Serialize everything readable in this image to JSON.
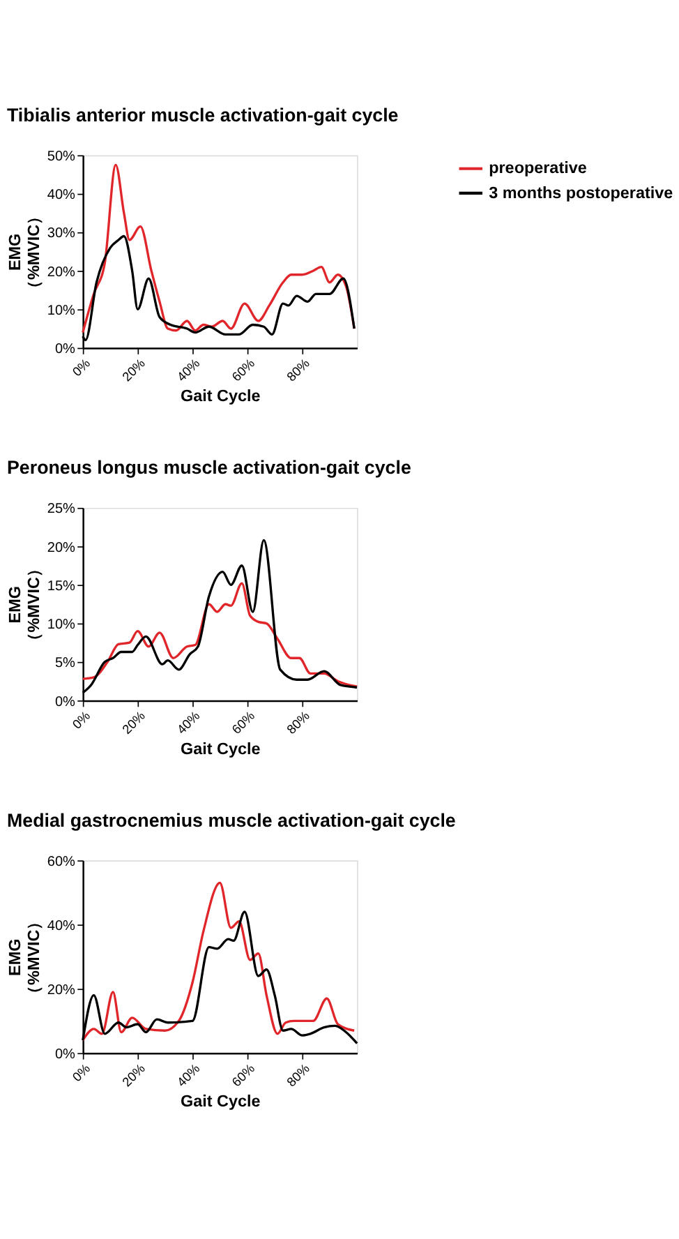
{
  "chart_data": [
    {
      "type": "line",
      "title": "Tibialis anterior muscle activation-gait cycle",
      "xlabel": "Gait Cycle",
      "ylabel": "EMG\n（%MVIC）",
      "xlim": [
        0,
        100
      ],
      "xticks": [
        {
          "value": 0,
          "label": "0%"
        },
        {
          "value": 20,
          "label": "20%"
        },
        {
          "value": 40,
          "label": "40%"
        },
        {
          "value": 60,
          "label": "60%"
        },
        {
          "value": 80,
          "label": "80%"
        }
      ],
      "ylim": [
        0,
        50
      ],
      "yticks": [
        {
          "value": 0,
          "label": "0%"
        },
        {
          "value": 10,
          "label": "10%"
        },
        {
          "value": 20,
          "label": "20%"
        },
        {
          "value": 30,
          "label": "30%"
        },
        {
          "value": 40,
          "label": "40%"
        },
        {
          "value": 50,
          "label": "50%"
        }
      ],
      "grid": false,
      "legend": "right",
      "marker": "none",
      "line_style": "solid",
      "series": [
        {
          "name": "preoperative",
          "color": "#e0262a",
          "x": [
            0,
            4,
            8,
            12,
            15,
            17,
            21,
            25,
            28,
            31,
            34,
            38,
            41,
            44,
            47,
            51,
            54,
            59,
            64,
            68,
            73,
            76,
            80,
            84,
            87,
            90,
            93,
            96,
            99
          ],
          "values": [
            4,
            14,
            22,
            47.5,
            35,
            28,
            31.5,
            20,
            12,
            5,
            4.5,
            7,
            4.5,
            6,
            5.5,
            7,
            5,
            11.5,
            7,
            11,
            17,
            19,
            19,
            20,
            21,
            17,
            19,
            16,
            5
          ]
        },
        {
          "name": "3 months postoperative",
          "color": "#000000",
          "x": [
            0,
            1,
            5,
            10,
            13,
            15,
            18,
            20,
            24,
            28,
            32,
            38,
            41,
            46,
            52,
            57,
            62,
            66,
            69,
            73,
            75,
            78,
            82,
            85,
            90,
            95,
            99
          ],
          "values": [
            3,
            2,
            17,
            26,
            28,
            29,
            20,
            10,
            18,
            8,
            6,
            5,
            4,
            5.5,
            3.5,
            3.5,
            6,
            5.5,
            3.5,
            11.5,
            11,
            13.5,
            12,
            14,
            14,
            18,
            5
          ]
        }
      ]
    },
    {
      "type": "line",
      "title": "Peroneus longus muscle activation-gait cycle",
      "xlabel": "Gait Cycle",
      "ylabel": "EMG\n（%MVIC）",
      "xlim": [
        0,
        100
      ],
      "xticks": [
        {
          "value": 0,
          "label": "0%"
        },
        {
          "value": 20,
          "label": "20%"
        },
        {
          "value": 40,
          "label": "40%"
        },
        {
          "value": 60,
          "label": "60%"
        },
        {
          "value": 80,
          "label": "80%"
        }
      ],
      "ylim": [
        0,
        25
      ],
      "yticks": [
        {
          "value": 0,
          "label": "0%"
        },
        {
          "value": 5,
          "label": "5%"
        },
        {
          "value": 10,
          "label": "10%"
        },
        {
          "value": 15,
          "label": "15%"
        },
        {
          "value": 20,
          "label": "20%"
        },
        {
          "value": 25,
          "label": "25%"
        }
      ],
      "grid": false,
      "legend": "right",
      "marker": "none",
      "line_style": "solid",
      "series": [
        {
          "name": "preoperative",
          "color": "#e0262a",
          "x": [
            0,
            4,
            9,
            13,
            17,
            20,
            24,
            28,
            33,
            38,
            41,
            46,
            49,
            52,
            54,
            58,
            61,
            64,
            67,
            71,
            76,
            79,
            83,
            88,
            93,
            100
          ],
          "values": [
            2.8,
            3,
            5,
            7.3,
            7.5,
            9,
            7,
            8.8,
            5.5,
            7,
            7.2,
            12.5,
            11.5,
            12.5,
            12.3,
            15.2,
            11,
            10.2,
            10,
            8,
            5.5,
            5.5,
            3.5,
            3.5,
            2.5,
            1.8
          ]
        },
        {
          "name": "3 months postoperative",
          "color": "#000000",
          "x": [
            0,
            3,
            8,
            11,
            14,
            18,
            20,
            23,
            29,
            31,
            35,
            39,
            42,
            46,
            51,
            54,
            58,
            62,
            66,
            72,
            78,
            82,
            88,
            94,
            100
          ],
          "values": [
            1,
            2,
            5,
            5.5,
            6.3,
            6.3,
            7.2,
            8.3,
            4.7,
            5.2,
            4,
            6,
            7,
            13.5,
            16.7,
            15,
            17.5,
            11.5,
            20.8,
            4,
            2.7,
            2.7,
            3.8,
            2,
            1.7
          ]
        }
      ]
    },
    {
      "type": "line",
      "title": "Medial gastrocnemius muscle activation-gait cycle",
      "xlabel": "Gait Cycle",
      "ylabel": "EMG\n（%MVIC）",
      "xlim": [
        0,
        100
      ],
      "xticks": [
        {
          "value": 0,
          "label": "0%"
        },
        {
          "value": 20,
          "label": "20%"
        },
        {
          "value": 40,
          "label": "40%"
        },
        {
          "value": 60,
          "label": "60%"
        },
        {
          "value": 80,
          "label": "80%"
        }
      ],
      "ylim": [
        0,
        60
      ],
      "yticks": [
        {
          "value": 0,
          "label": "0%"
        },
        {
          "value": 20,
          "label": "20%"
        },
        {
          "value": 40,
          "label": "40%"
        },
        {
          "value": 60,
          "label": "60%"
        }
      ],
      "grid": false,
      "legend": "right",
      "marker": "none",
      "line_style": "solid",
      "series": [
        {
          "name": "preoperative",
          "color": "#e0262a",
          "x": [
            0,
            4,
            7,
            11,
            14,
            18,
            23,
            30,
            35,
            40,
            44,
            50,
            54,
            57,
            61,
            64,
            67,
            71,
            74,
            77,
            80,
            84,
            89,
            93,
            99
          ],
          "values": [
            4,
            7.5,
            6,
            19,
            6.5,
            11,
            7.5,
            7,
            10,
            22,
            38,
            53,
            39,
            41,
            29,
            31,
            18,
            6,
            9.5,
            10,
            10,
            10,
            17,
            9,
            7
          ]
        },
        {
          "name": "3 months postoperative",
          "color": "#000000",
          "x": [
            0,
            4,
            8,
            13,
            16,
            20,
            23,
            27,
            31,
            40,
            46,
            49,
            53,
            55,
            59,
            64,
            67,
            70,
            73,
            76,
            80,
            83,
            88,
            92,
            96,
            100
          ],
          "values": [
            4,
            18,
            6,
            9.5,
            8,
            9,
            6.5,
            10.5,
            9.5,
            10,
            33,
            32.5,
            35.5,
            35,
            44,
            24,
            26,
            18,
            7,
            7.5,
            5.5,
            6,
            8,
            8.5,
            6.5,
            3
          ]
        }
      ]
    }
  ]
}
